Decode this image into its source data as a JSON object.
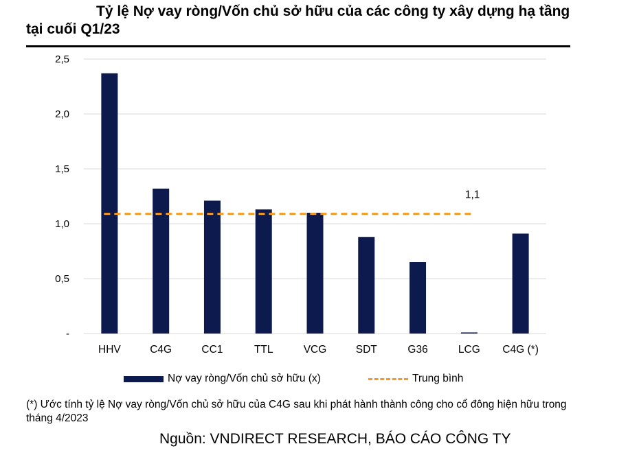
{
  "title": "Tỷ lệ Nợ vay ròng/Vốn chủ sở hữu của các công ty xây dựng hạ tầng tại cuối Q1/23",
  "footnote": "(*) Ước tính tỷ lệ Nợ vay ròng/Vốn chủ sở hữu của C4G sau khi phát hành thành công cho cổ đông hiện hữu trong tháng 4/2023",
  "source": "Nguồn: VNDIRECT RESEARCH, BÁO CÁO CÔNG TY",
  "colors": {
    "bar": "#0c1a4d",
    "average": "#f59a23",
    "grid": "#d9d9d9"
  },
  "chart_data": {
    "type": "bar",
    "categories": [
      "HHV",
      "C4G",
      "CC1",
      "TTL",
      "VCG",
      "SDT",
      "G36",
      "LCG",
      "C4G (*)"
    ],
    "series": [
      {
        "name": "Nợ vay ròng/Vốn chủ sở hữu (x)",
        "values": [
          2.37,
          1.32,
          1.21,
          1.13,
          1.1,
          0.88,
          0.65,
          0.01,
          0.91
        ]
      }
    ],
    "average": {
      "name": "Trung bình",
      "value": 1.09,
      "label": "1,1"
    },
    "ylim": [
      0,
      2.5
    ],
    "yticks": [
      "-",
      "0,5",
      "1,0",
      "1,5",
      "2,0",
      "2,5"
    ],
    "ytick_values": [
      0,
      0.5,
      1.0,
      1.5,
      2.0,
      2.5
    ],
    "grid": true,
    "legend_position": "bottom"
  }
}
